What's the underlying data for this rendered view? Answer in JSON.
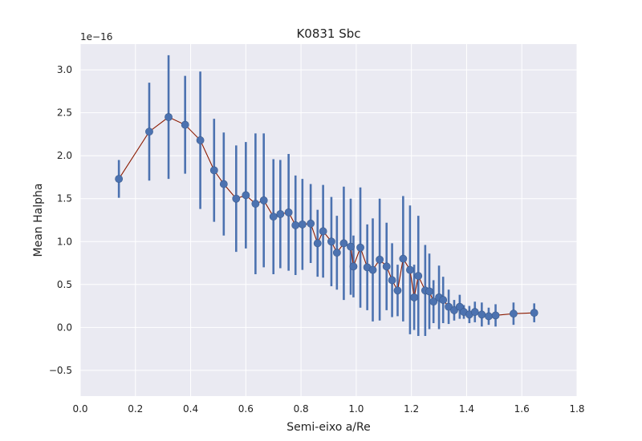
{
  "chart_data": {
    "type": "line",
    "title": "K0831 Sbc",
    "xlabel": "Semi-eixo a/Re",
    "ylabel": "Mean Halpha",
    "y_offset_label": "1e−16",
    "xlim": [
      0.0,
      1.8
    ],
    "ylim": [
      -0.8,
      3.3
    ],
    "x_ticks": [
      0.0,
      0.2,
      0.4,
      0.6,
      0.8,
      1.0,
      1.2,
      1.4,
      1.6,
      1.8
    ],
    "x_tick_labels": [
      "0.0",
      "0.2",
      "0.4",
      "0.6",
      "0.8",
      "1.0",
      "1.2",
      "1.4",
      "1.6",
      "1.8"
    ],
    "y_ticks": [
      -0.5,
      0.0,
      0.5,
      1.0,
      1.5,
      2.0,
      2.5,
      3.0
    ],
    "y_tick_labels": [
      "−0.5",
      "0.0",
      "0.5",
      "1.0",
      "1.5",
      "2.0",
      "2.5",
      "3.0"
    ],
    "grid": true,
    "colors": {
      "background": "#eaeaf2",
      "grid": "#ffffff",
      "line": "#8b1a00",
      "marker": "#4c72b0",
      "errorbar": "#4c72b0"
    },
    "series": [
      {
        "x": [
          0.14,
          0.25,
          0.32,
          0.38,
          0.435,
          0.485,
          0.52,
          0.565,
          0.6,
          0.635,
          0.665,
          0.7,
          0.725,
          0.755,
          0.78,
          0.805,
          0.835,
          0.86,
          0.88,
          0.91,
          0.93,
          0.955,
          0.98,
          0.99,
          1.015,
          1.04,
          1.06,
          1.085,
          1.11,
          1.13,
          1.15,
          1.17,
          1.195,
          1.21,
          1.225,
          1.25,
          1.265,
          1.28,
          1.3,
          1.315,
          1.335,
          1.355,
          1.375,
          1.39,
          1.41,
          1.43,
          1.455,
          1.48,
          1.505,
          1.57,
          1.645
        ],
        "y": [
          1.73,
          2.28,
          2.45,
          2.36,
          2.18,
          1.83,
          1.67,
          1.5,
          1.54,
          1.44,
          1.48,
          1.29,
          1.32,
          1.34,
          1.19,
          1.2,
          1.21,
          0.98,
          1.12,
          1.0,
          0.87,
          0.98,
          0.94,
          0.71,
          0.93,
          0.7,
          0.67,
          0.79,
          0.71,
          0.55,
          0.43,
          0.8,
          0.67,
          0.35,
          0.6,
          0.43,
          0.42,
          0.3,
          0.35,
          0.32,
          0.24,
          0.2,
          0.24,
          0.18,
          0.15,
          0.18,
          0.15,
          0.13,
          0.14,
          0.16,
          0.17
        ],
        "yerr": [
          0.22,
          0.57,
          0.72,
          0.57,
          0.8,
          0.6,
          0.6,
          0.62,
          0.62,
          0.82,
          0.78,
          0.67,
          0.63,
          0.68,
          0.58,
          0.53,
          0.46,
          0.39,
          0.54,
          0.52,
          0.43,
          0.66,
          0.56,
          0.36,
          0.7,
          0.5,
          0.6,
          0.71,
          0.51,
          0.43,
          0.3,
          0.73,
          0.75,
          0.38,
          0.7,
          0.53,
          0.44,
          0.25,
          0.37,
          0.27,
          0.2,
          0.12,
          0.14,
          0.08,
          0.1,
          0.12,
          0.14,
          0.1,
          0.13,
          0.13,
          0.11
        ]
      }
    ]
  }
}
